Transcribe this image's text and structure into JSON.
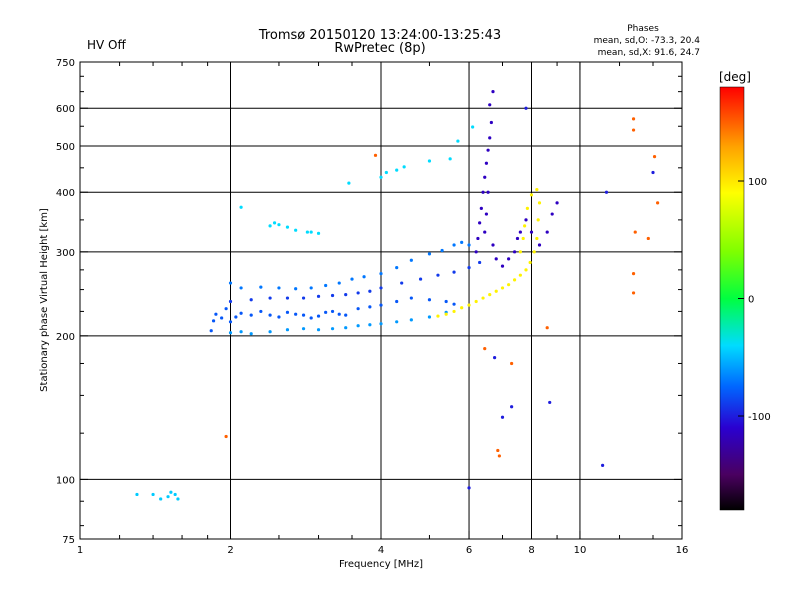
{
  "status": {
    "hv_text": "HV Off",
    "hv_color": "#cc0000"
  },
  "chart_data": {
    "type": "scatter",
    "title": "Tromsø 20150120 13:24:00-13:25:43",
    "subtitle": "RwPretec (8p)",
    "xlabel": "Frequency [MHz]",
    "ylabel": "Stationary phase Virtual Height [km]",
    "x_scale": "log",
    "y_scale": "log",
    "xlim": [
      1,
      16
    ],
    "ylim": [
      75,
      750
    ],
    "x_ticks": [
      1,
      2,
      4,
      6,
      8,
      10,
      16
    ],
    "x_tick_labels": [
      "1",
      "2",
      "4",
      "6",
      "8",
      "10",
      "16"
    ],
    "x_gridlines": [
      2,
      4,
      6,
      8,
      10
    ],
    "x_minor_ticks": [
      1.2,
      1.4,
      1.6,
      1.8,
      2.5,
      3,
      3.5,
      5,
      7,
      9,
      12,
      14
    ],
    "y_ticks": [
      75,
      100,
      200,
      300,
      400,
      500,
      600,
      750
    ],
    "y_tick_labels": [
      "75",
      "100",
      "200",
      "300",
      "400",
      "500",
      "600",
      "750"
    ],
    "y_gridlines": [
      100,
      200,
      300,
      400,
      500,
      600
    ],
    "y_minor_ticks": [
      80,
      90,
      125,
      150,
      175,
      225,
      250,
      275,
      350,
      450,
      550,
      650,
      700
    ],
    "grid": true,
    "annotation": {
      "title": "Phases",
      "line1": "mean, sd,O: -73.3, 20.4",
      "line2": "mean, sd,X:  91.6, 24.7"
    },
    "colorbar": {
      "label": "[deg]",
      "range": [
        -180,
        180
      ],
      "ticks": [
        100,
        0,
        -100
      ],
      "tick_labels": [
        "100",
        "0",
        "-100"
      ],
      "position": "right",
      "stops": [
        {
          "value": -180,
          "color": "#000000"
        },
        {
          "value": -150,
          "color": "#4a0060"
        },
        {
          "value": -110,
          "color": "#2a00d0"
        },
        {
          "value": -75,
          "color": "#0066ff"
        },
        {
          "value": -40,
          "color": "#00dcff"
        },
        {
          "value": 0,
          "color": "#00ff40"
        },
        {
          "value": 40,
          "color": "#7fff00"
        },
        {
          "value": 90,
          "color": "#ffff00"
        },
        {
          "value": 130,
          "color": "#ffa000"
        },
        {
          "value": 180,
          "color": "#ff0000"
        }
      ]
    },
    "series": [
      {
        "points": [
          [
            1.83,
            205
          ],
          [
            1.85,
            215
          ],
          [
            1.87,
            222
          ],
          [
            1.92,
            218
          ],
          [
            1.96,
            228
          ],
          [
            2.0,
            214
          ],
          [
            2.05,
            219
          ],
          [
            2.1,
            223
          ],
          [
            2.2,
            221
          ],
          [
            2.3,
            225
          ],
          [
            2.4,
            221
          ],
          [
            2.5,
            219
          ],
          [
            2.6,
            224
          ],
          [
            2.7,
            222
          ],
          [
            2.8,
            221
          ],
          [
            2.9,
            218
          ],
          [
            3.0,
            220
          ],
          [
            3.1,
            224
          ],
          [
            3.2,
            225
          ],
          [
            3.3,
            222
          ],
          [
            3.4,
            221
          ],
          [
            3.6,
            228
          ],
          [
            3.8,
            230
          ],
          [
            4.0,
            232
          ],
          [
            4.3,
            236
          ],
          [
            4.6,
            240
          ],
          [
            5.0,
            238
          ],
          [
            5.4,
            236
          ],
          [
            5.6,
            233
          ]
        ],
        "phase": -80
      },
      {
        "points": [
          [
            2.0,
            203
          ],
          [
            2.1,
            204
          ],
          [
            2.2,
            202
          ],
          [
            2.4,
            204
          ],
          [
            2.6,
            206
          ],
          [
            2.8,
            207
          ],
          [
            3.0,
            206
          ],
          [
            3.2,
            207
          ],
          [
            3.4,
            208
          ],
          [
            3.6,
            210
          ],
          [
            3.8,
            211
          ],
          [
            4.0,
            212
          ],
          [
            4.3,
            214
          ],
          [
            4.6,
            216
          ],
          [
            5.0,
            219
          ],
          [
            5.4,
            224
          ]
        ],
        "phase": -60
      },
      {
        "points": [
          [
            2.0,
            258
          ],
          [
            2.1,
            252
          ],
          [
            2.3,
            253
          ],
          [
            2.5,
            252
          ],
          [
            2.7,
            251
          ],
          [
            2.9,
            252
          ],
          [
            3.1,
            255
          ],
          [
            3.3,
            258
          ],
          [
            3.5,
            263
          ],
          [
            3.7,
            266
          ],
          [
            4.0,
            270
          ],
          [
            4.3,
            278
          ],
          [
            4.6,
            288
          ],
          [
            5.0,
            297
          ],
          [
            5.3,
            302
          ],
          [
            5.6,
            310
          ],
          [
            5.8,
            314
          ],
          [
            6.0,
            310
          ]
        ],
        "phase": -70
      },
      {
        "points": [
          [
            2.0,
            236
          ],
          [
            2.2,
            238
          ],
          [
            2.4,
            240
          ],
          [
            2.6,
            240
          ],
          [
            2.8,
            240
          ],
          [
            3.0,
            242
          ],
          [
            3.2,
            243
          ],
          [
            3.4,
            244
          ],
          [
            3.6,
            246
          ],
          [
            3.8,
            248
          ],
          [
            4.0,
            252
          ],
          [
            4.4,
            258
          ],
          [
            4.8,
            263
          ],
          [
            5.2,
            268
          ],
          [
            5.6,
            272
          ],
          [
            6.0,
            278
          ],
          [
            6.3,
            285
          ]
        ],
        "phase": -90
      },
      {
        "points": [
          [
            5.2,
            220
          ],
          [
            5.4,
            222
          ],
          [
            5.6,
            225
          ],
          [
            5.8,
            229
          ],
          [
            6.0,
            232
          ],
          [
            6.2,
            236
          ],
          [
            6.4,
            240
          ],
          [
            6.6,
            244
          ],
          [
            6.8,
            248
          ],
          [
            7.0,
            252
          ],
          [
            7.2,
            256
          ],
          [
            7.4,
            262
          ],
          [
            7.6,
            268
          ],
          [
            7.8,
            275
          ],
          [
            7.95,
            285
          ],
          [
            8.1,
            300
          ],
          [
            8.2,
            320
          ],
          [
            8.25,
            350
          ],
          [
            8.3,
            380
          ],
          [
            8.2,
            405
          ],
          [
            8.0,
            395
          ],
          [
            7.85,
            370
          ],
          [
            7.75,
            340
          ],
          [
            7.7,
            320
          ],
          [
            7.6,
            300
          ]
        ],
        "phase": 95
      },
      {
        "points": [
          [
            6.2,
            300
          ],
          [
            6.25,
            320
          ],
          [
            6.3,
            345
          ],
          [
            6.35,
            370
          ],
          [
            6.4,
            400
          ],
          [
            6.45,
            430
          ],
          [
            6.5,
            460
          ],
          [
            6.55,
            490
          ],
          [
            6.6,
            520
          ],
          [
            6.65,
            560
          ],
          [
            6.6,
            610
          ],
          [
            6.7,
            650
          ],
          [
            6.55,
            400
          ],
          [
            6.5,
            360
          ],
          [
            6.45,
            330
          ],
          [
            6.7,
            310
          ],
          [
            6.8,
            290
          ],
          [
            7.0,
            280
          ],
          [
            7.2,
            290
          ],
          [
            7.4,
            300
          ],
          [
            7.5,
            320
          ],
          [
            7.6,
            330
          ],
          [
            7.8,
            350
          ],
          [
            8.0,
            330
          ],
          [
            8.3,
            310
          ],
          [
            8.6,
            330
          ],
          [
            8.8,
            360
          ],
          [
            9.0,
            380
          ]
        ],
        "phase": -115
      },
      {
        "points": [
          [
            2.4,
            340
          ],
          [
            2.45,
            345
          ],
          [
            2.5,
            342
          ],
          [
            2.6,
            338
          ],
          [
            2.7,
            333
          ],
          [
            2.85,
            330
          ],
          [
            2.9,
            330
          ],
          [
            3.0,
            328
          ],
          [
            2.1,
            372
          ],
          [
            3.45,
            418
          ],
          [
            4.0,
            430
          ],
          [
            4.1,
            440
          ],
          [
            4.3,
            445
          ],
          [
            4.45,
            452
          ],
          [
            5.0,
            465
          ],
          [
            5.5,
            470
          ],
          [
            5.7,
            512
          ],
          [
            6.1,
            548
          ]
        ],
        "phase": -40
      },
      {
        "points": [
          [
            1.3,
            93
          ],
          [
            1.4,
            93
          ],
          [
            1.45,
            91
          ],
          [
            1.5,
            92
          ],
          [
            1.55,
            93
          ],
          [
            1.57,
            91
          ],
          [
            1.52,
            94
          ]
        ],
        "phase": -45
      },
      {
        "points": [
          [
            1.96,
            123
          ],
          [
            3.9,
            478
          ],
          [
            6.45,
            188
          ],
          [
            6.85,
            115
          ],
          [
            6.9,
            112
          ],
          [
            7.3,
            175
          ],
          [
            8.6,
            208
          ],
          [
            12.8,
            570
          ],
          [
            12.8,
            540
          ],
          [
            12.8,
            270
          ],
          [
            12.8,
            246
          ],
          [
            12.9,
            330
          ],
          [
            13.7,
            320
          ],
          [
            14.1,
            475
          ],
          [
            14.3,
            380
          ]
        ],
        "phase": 150
      },
      {
        "points": [
          [
            6.0,
            96
          ],
          [
            7.0,
            135
          ],
          [
            7.3,
            142
          ],
          [
            8.7,
            145
          ],
          [
            11.1,
            107
          ],
          [
            11.3,
            400
          ],
          [
            14.0,
            440
          ],
          [
            6.75,
            180
          ],
          [
            7.8,
            600
          ]
        ],
        "phase": -100
      }
    ]
  }
}
